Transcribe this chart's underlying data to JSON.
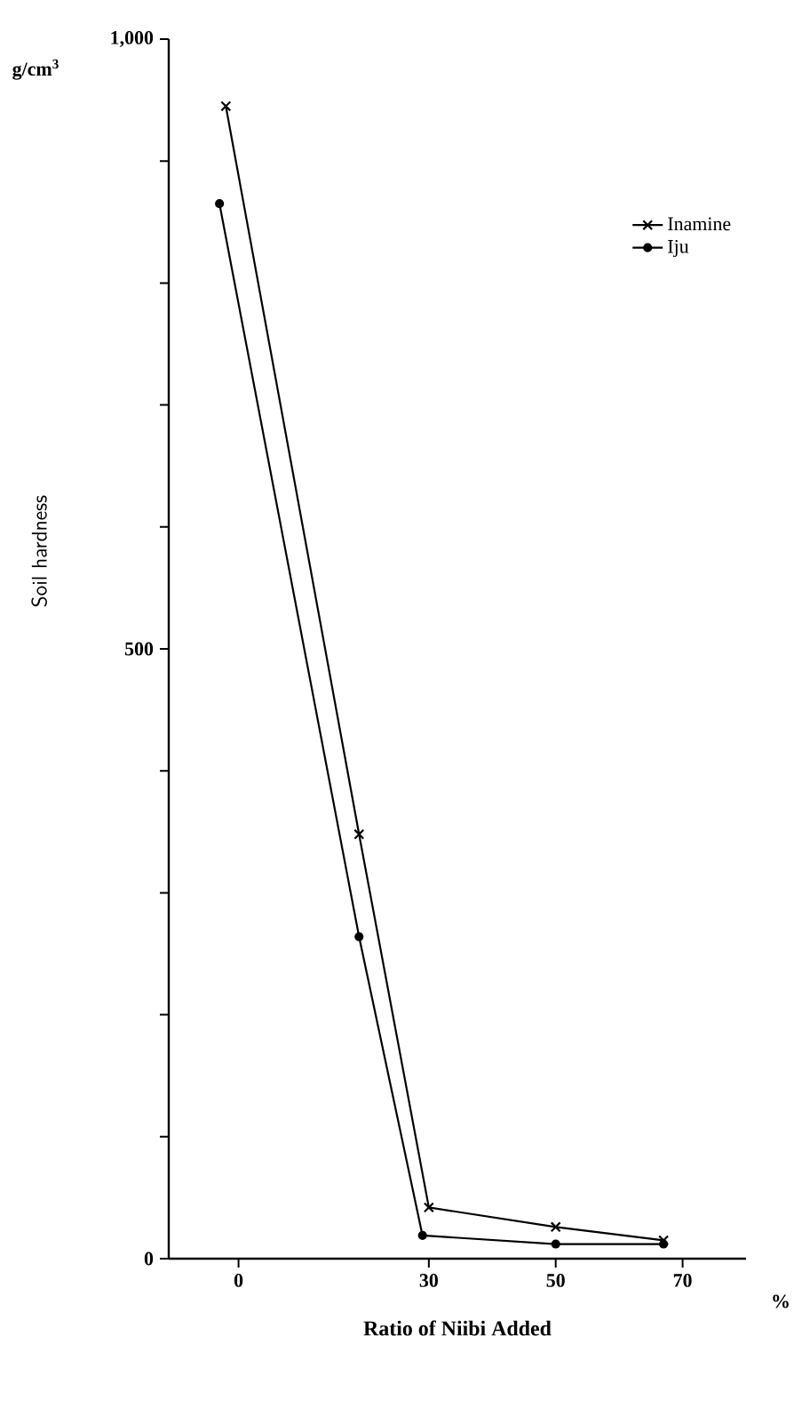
{
  "chart_data": {
    "type": "line",
    "xlabel": "Ratio of Niibi Added",
    "ylabel": "Soil hardness",
    "annotations": [
      "g/cm$^{3}$",
      "%"
    ],
    "xlim": [
      -11,
      80
    ],
    "ylim": [
      0,
      1000
    ],
    "xticks": [
      0,
      30,
      50,
      70
    ],
    "yticks": [
      0,
      {
        "value": 100,
        "label": null
      },
      {
        "value": 200,
        "label": null
      },
      {
        "value": 300,
        "label": null
      },
      {
        "value": 400,
        "label": null
      },
      500,
      {
        "value": 600,
        "label": null
      },
      {
        "value": 700,
        "label": null
      },
      {
        "value": 800,
        "label": null
      },
      {
        "value": 900,
        "label": null
      },
      {
        "value": 1000,
        "label": "1,000"
      }
    ],
    "legend": "right",
    "grid": false,
    "line_style": "solid",
    "series": [
      {
        "name": "Inamine",
        "color": "#000000",
        "marker": "cross",
        "x": [
          -2,
          19,
          30,
          50,
          67
        ],
        "values": [
          945,
          348,
          42,
          26,
          15
        ]
      },
      {
        "name": "Iju",
        "color": "#000000",
        "marker": "circle",
        "x": [
          -3,
          19,
          29,
          50,
          67
        ],
        "values": [
          865,
          264,
          19,
          12,
          12
        ]
      }
    ]
  }
}
